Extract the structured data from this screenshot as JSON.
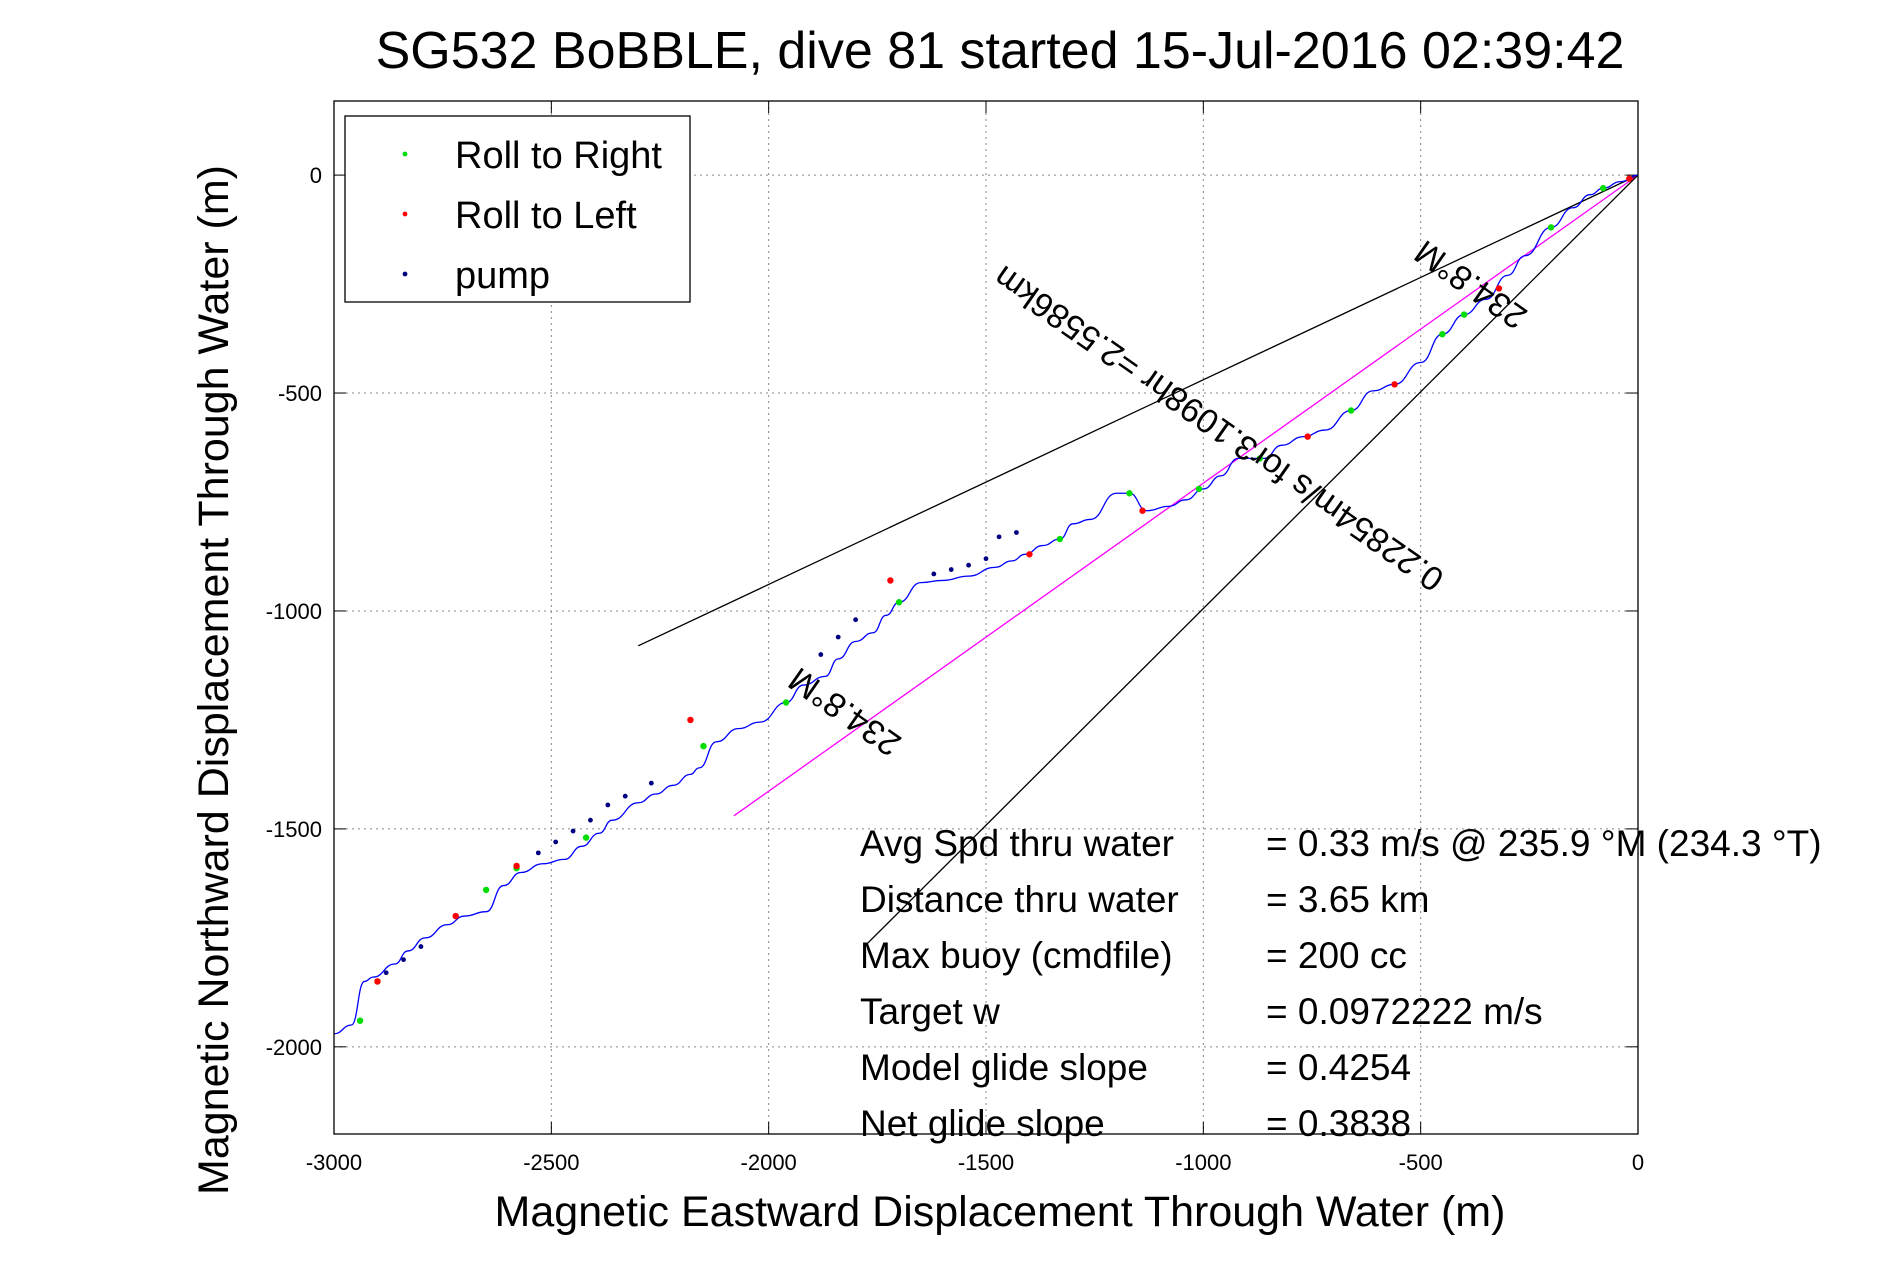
{
  "chart_data": {
    "type": "line",
    "title": "SG532 BoBBLE, dive 81 started 15-Jul-2016 02:39:42",
    "xlabel": "Magnetic Eastward Displacement Through Water (m)",
    "ylabel": "Magnetic Northward Displacement Through Water (m)",
    "xlim": [
      -3000,
      0
    ],
    "ylim": [
      -2200,
      170
    ],
    "xticks": [
      -3000,
      -2500,
      -2000,
      -1500,
      -1000,
      -500,
      0
    ],
    "yticks": [
      0,
      -500,
      -1000,
      -1500,
      -2000
    ],
    "xtick_labels": [
      "-3000",
      "-2500",
      "-2000",
      "-1500",
      "-1000",
      "-500",
      "0"
    ],
    "ytick_labels": [
      "0",
      "-500",
      "-1000",
      "-1500",
      "-2000"
    ],
    "grid": true,
    "legend_position": "top-left",
    "legend": [
      {
        "label": "Roll to Right",
        "color": "#00dd00"
      },
      {
        "label": "Roll to Left",
        "color": "#ff0000"
      },
      {
        "label": "pump",
        "color": "#000080"
      }
    ],
    "track": {
      "color": "#0000ff",
      "x": [
        0,
        -40,
        -80,
        -110,
        -150,
        -200,
        -260,
        -300,
        -350,
        -400,
        -450,
        -500,
        -560,
        -610,
        -660,
        -720,
        -770,
        -820,
        -860,
        -920,
        -960,
        -1000,
        -1040,
        -1080,
        -1130,
        -1170,
        -1200,
        -1260,
        -1300,
        -1330,
        -1370,
        -1410,
        -1440,
        -1480,
        -1540,
        -1600,
        -1650,
        -1700,
        -1730,
        -1760,
        -1800,
        -1840,
        -1870,
        -1920,
        -1960,
        -2020,
        -2070,
        -2120,
        -2160,
        -2180,
        -2220,
        -2260,
        -2300,
        -2360,
        -2390,
        -2430,
        -2470,
        -2520,
        -2570,
        -2610,
        -2650,
        -2700,
        -2740,
        -2790,
        -2830,
        -2860,
        -2910,
        -2930,
        -2960,
        -3000,
        -3020
      ],
      "y": [
        0,
        -15,
        -30,
        -45,
        -75,
        -120,
        -185,
        -230,
        -285,
        -320,
        -365,
        -430,
        -480,
        -495,
        -540,
        -585,
        -600,
        -620,
        -650,
        -650,
        -690,
        -720,
        -745,
        -760,
        -770,
        -730,
        -730,
        -790,
        -800,
        -835,
        -850,
        -870,
        -885,
        -900,
        -920,
        -930,
        -935,
        -980,
        -1010,
        -1050,
        -1070,
        -1110,
        -1150,
        -1170,
        -1210,
        -1255,
        -1270,
        -1300,
        -1360,
        -1375,
        -1400,
        -1420,
        -1440,
        -1480,
        -1510,
        -1540,
        -1570,
        -1580,
        -1600,
        -1630,
        -1690,
        -1700,
        -1720,
        -1750,
        -1780,
        -1810,
        -1840,
        -1850,
        -1950,
        -1970,
        -2050
      ]
    },
    "roll_right_x": [
      -80,
      -200,
      -400,
      -450,
      -660,
      -870,
      -1010,
      -1170,
      -1330,
      -1700,
      -1960,
      -2150,
      -2420,
      -2580,
      -2650,
      -2900,
      -2940
    ],
    "roll_right_y": [
      -30,
      -120,
      -320,
      -365,
      -540,
      -650,
      -720,
      -730,
      -835,
      -980,
      -1210,
      -1310,
      -1520,
      -1590,
      -1640,
      -1850,
      -1940
    ],
    "roll_left_x": [
      -20,
      -320,
      -560,
      -760,
      -1140,
      -1400,
      -1720,
      -2180,
      -2580,
      -2720,
      -2900,
      -3030
    ],
    "roll_left_y": [
      -8,
      -260,
      -480,
      -600,
      -770,
      -870,
      -930,
      -1250,
      -1585,
      -1700,
      -1850,
      -2050
    ],
    "pump_x": [
      -1430,
      -1470,
      -1500,
      -1540,
      -1580,
      -1620,
      -1800,
      -1840,
      -1880,
      -2270,
      -2330,
      -2370,
      -2410,
      -2450,
      -2490,
      -2530,
      -2800,
      -2840,
      -2880
    ],
    "pump_y": [
      -820,
      -830,
      -880,
      -895,
      -905,
      -915,
      -1020,
      -1060,
      -1100,
      -1395,
      -1425,
      -1445,
      -1480,
      -1505,
      -1530,
      -1555,
      -1770,
      -1800,
      -1830
    ],
    "reference_lines": [
      {
        "x": [
          0,
          -2300
        ],
        "y": [
          0,
          -1080
        ],
        "color": "#000000"
      },
      {
        "x": [
          0,
          -2080
        ],
        "y": [
          0,
          -1470
        ],
        "color": "#ff00ff"
      },
      {
        "x": [
          0,
          -1780
        ],
        "y": [
          0,
          -1770
        ],
        "color": "#000000"
      }
    ],
    "annotations": [
      {
        "text": "234.8°M",
        "x": -370,
        "y": -230,
        "rotate": 215
      },
      {
        "text": "0.22854m/s for3.1098hr =2.5586km",
        "x": -950,
        "y": -560,
        "rotate": 215
      },
      {
        "text": "234.8°M",
        "x": -1810,
        "y": -1210,
        "rotate": 215
      }
    ],
    "stats": [
      {
        "label": "Avg Spd thru water",
        "value": "=  0.33 m/s @ 235.9 °M (234.3 °T)"
      },
      {
        "label": "Distance thru water",
        "value": "=  3.65 km"
      },
      {
        "label": "Max buoy (cmdfile)",
        "value": "= 200 cc"
      },
      {
        "label": "Target w",
        "value": "= 0.0972222 m/s"
      },
      {
        "label": "Model glide slope",
        "value": "= 0.4254"
      },
      {
        "label": "Net glide slope",
        "value": "= 0.3838"
      }
    ]
  }
}
